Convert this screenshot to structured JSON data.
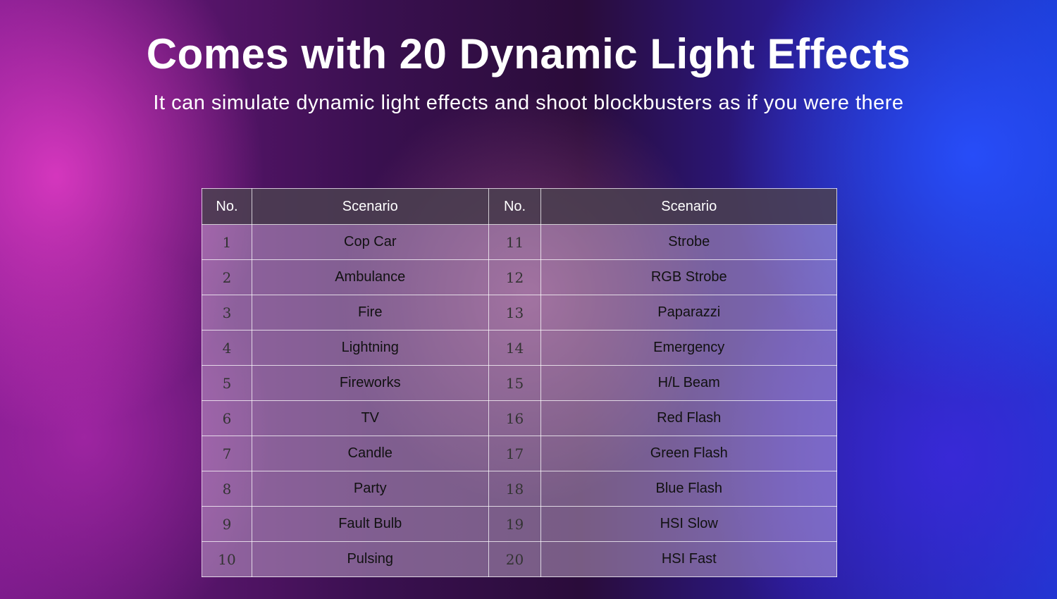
{
  "title": "Comes with 20 Dynamic Light Effects",
  "subtitle": "It can simulate dynamic light effects and shoot blockbusters as if you were there",
  "table": {
    "headers": [
      "No.",
      "Scenario",
      "No.",
      "Scenario"
    ],
    "rows": [
      [
        "1",
        "Cop Car",
        "11",
        "Strobe"
      ],
      [
        "2",
        "Ambulance",
        "12",
        "RGB Strobe"
      ],
      [
        "3",
        "Fire",
        "13",
        "Paparazzi"
      ],
      [
        "4",
        "Lightning",
        "14",
        "Emergency"
      ],
      [
        "5",
        "Fireworks",
        "15",
        "H/L Beam"
      ],
      [
        "6",
        "TV",
        "16",
        "Red Flash"
      ],
      [
        "7",
        "Candle",
        "17",
        "Green Flash"
      ],
      [
        "8",
        "Party",
        "18",
        "Blue Flash"
      ],
      [
        "9",
        "Fault Bulb",
        "19",
        "HSI Slow"
      ],
      [
        "10",
        "Pulsing",
        "20",
        "HSI Fast"
      ]
    ]
  }
}
